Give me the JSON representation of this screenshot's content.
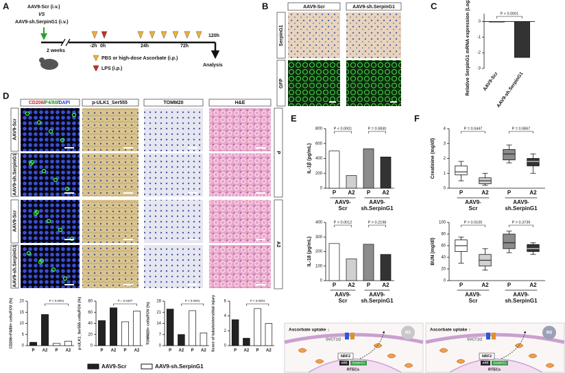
{
  "panel_a": {
    "letter": "A",
    "group1": "AAV9-Scr (i.v.)",
    "vs": "VS",
    "group2": "AAV9-sh.SerpinG1 (i.v.)",
    "interval": "2 weeks",
    "times": [
      "-2h",
      "0h",
      "24h",
      "72h",
      "120h"
    ],
    "endpoint": "Analysis",
    "legend": [
      "PBS or high-dose Ascorbate (i.p.)",
      "LPS (i.p.)"
    ]
  },
  "panel_b": {
    "letter": "B",
    "columns": [
      "AAV9-Scr",
      "AAV9-sh.SerpinG1"
    ],
    "rows": [
      "SerpinG1",
      "GFP"
    ]
  },
  "panel_c": {
    "letter": "C"
  },
  "panel_d": {
    "letter": "D",
    "columns": [
      "CD206",
      "/",
      "F4/80",
      "/",
      "DAPI",
      "p-ULK1_Ser555",
      "TOMM20",
      "H&E"
    ],
    "rows": [
      "AAV9-Scr",
      "AAV9-sh.SerpinG1",
      "AAV9-Scr",
      "AAV9-sh.SerpinG1"
    ],
    "groups": [
      "P",
      "A2"
    ],
    "legend": [
      "AAV9-Scr",
      "AAV9-sh.SerpinG1"
    ]
  },
  "panel_e": {
    "letter": "E"
  },
  "panel_f": {
    "letter": "F"
  },
  "panel_g": {
    "letter": "G",
    "left": {
      "uptake": "Ascorbate uptake ↓",
      "transporter": "SVCT1/2",
      "macrophage": "M2",
      "factor": "NRF2",
      "element": "ARE",
      "gene": "SerpinG1",
      "cell": "RTECs"
    },
    "right": {
      "uptake": "Ascorbate uptake ↑",
      "transporter": "SVCT1/2",
      "macrophage": "M2",
      "factor": "NRF2",
      "element": "ARE",
      "gene": "SerpinG1",
      "cell": "RTECs"
    }
  },
  "chart_data": [
    {
      "type": "bar",
      "ylabel": "Relative SerpinG1 mRNA expression (Log2 fold)",
      "categories": [
        "AAV9-Scr",
        "AAV9-sh.SerpinG1"
      ],
      "values": [
        0,
        -2.3
      ],
      "colors": [
        "#d9d9d9",
        "#333333"
      ],
      "ylim": [
        -3,
        0.5
      ],
      "yticks": [
        0,
        -1,
        -2,
        -3
      ],
      "annotations": [
        "P < 0.0001"
      ]
    },
    {
      "type": "bar",
      "ylabel": "CD206+F4/80+ cells/FOV (%)",
      "categories": [
        "P",
        "A2",
        "P",
        "A2"
      ],
      "values": [
        1.5,
        14,
        1,
        2
      ],
      "colors": [
        "#222222",
        "#222222",
        "#ffffff",
        "#ffffff"
      ],
      "ylim": [
        0,
        20
      ],
      "yticks": [
        0,
        5,
        10,
        15,
        20
      ],
      "annotations": [
        "P < 0.0001"
      ]
    },
    {
      "type": "bar",
      "ylabel": "p-ULK1_Ser555 cells/FOV (%)",
      "categories": [
        "P",
        "A2",
        "P",
        "A2"
      ],
      "values": [
        45,
        68,
        43,
        62
      ],
      "colors": [
        "#222222",
        "#222222",
        "#ffffff",
        "#ffffff"
      ],
      "ylim": [
        0,
        80
      ],
      "yticks": [
        0,
        20,
        40,
        60,
        80
      ],
      "annotations": [
        "P = 0.0407"
      ]
    },
    {
      "type": "bar",
      "ylabel": "TOMM20+ cells/FOV (%)",
      "categories": [
        "P",
        "A2",
        "P",
        "A2"
      ],
      "values": [
        23,
        7,
        22,
        8
      ],
      "colors": [
        "#222222",
        "#222222",
        "#ffffff",
        "#ffffff"
      ],
      "ylim": [
        0,
        28
      ],
      "yticks": [
        0,
        7,
        14,
        21,
        28
      ],
      "annotations": [
        "P < 0.0001"
      ]
    },
    {
      "type": "bar",
      "ylabel": "Score of tubulointerstitial injury",
      "categories": [
        "P",
        "A2",
        "P",
        "A2"
      ],
      "values": [
        3.5,
        1,
        5,
        3
      ],
      "colors": [
        "#222222",
        "#222222",
        "#ffffff",
        "#ffffff"
      ],
      "ylim": [
        0,
        6
      ],
      "yticks": [
        0,
        2,
        4,
        6
      ],
      "annotations": [
        "P < 0.0001"
      ]
    },
    {
      "type": "bar",
      "ylabel": "IL-1β (pg/mL)",
      "categories": [
        "P",
        "A2",
        "P",
        "A2"
      ],
      "groups": [
        [
          "AAV9-",
          "Scr"
        ],
        [
          "AAV9-",
          "sh.SerpinG1"
        ]
      ],
      "values": [
        500,
        170,
        530,
        420
      ],
      "colors": [
        "#ffffff",
        "#d0d0d0",
        "#8c8c8c",
        "#333333"
      ],
      "ylim": [
        0,
        800
      ],
      "yticks": [
        0,
        200,
        400,
        600,
        800
      ],
      "annotations": [
        "P < 0.0001",
        "P = 0.0830"
      ]
    },
    {
      "type": "bar",
      "ylabel": "IL-18 (pg/mL)",
      "categories": [
        "P",
        "A2",
        "P",
        "A2"
      ],
      "groups": [
        [
          "AAV9-",
          "Scr"
        ],
        [
          "AAV9-",
          "sh.SerpinG1"
        ]
      ],
      "values": [
        255,
        150,
        250,
        180
      ],
      "colors": [
        "#ffffff",
        "#d0d0d0",
        "#8c8c8c",
        "#333333"
      ],
      "ylim": [
        0,
        400
      ],
      "yticks": [
        0,
        100,
        200,
        300,
        400
      ],
      "annotations": [
        "P = 0.0012",
        "P = 0.2198"
      ]
    },
    {
      "type": "box",
      "ylabel": "Creatinine (mg/dl)",
      "categories": [
        "P",
        "A2",
        "P",
        "A2"
      ],
      "groups": [
        [
          "AAV9-",
          "Scr"
        ],
        [
          "AAV9-",
          "sh.SerpinG1"
        ]
      ],
      "boxes": [
        {
          "min": 0.5,
          "q1": 0.9,
          "median": 1.1,
          "q3": 1.5,
          "max": 1.8
        },
        {
          "min": 0.2,
          "q1": 0.3,
          "median": 0.5,
          "q3": 0.7,
          "max": 1.0
        },
        {
          "min": 1.7,
          "q1": 1.9,
          "median": 2.3,
          "q3": 2.6,
          "max": 2.9
        },
        {
          "min": 1.0,
          "q1": 1.5,
          "median": 1.8,
          "q3": 2.0,
          "max": 2.3
        }
      ],
      "colors": [
        "#ffffff",
        "#d0d0d0",
        "#8c8c8c",
        "#333333"
      ],
      "ylim": [
        0,
        4
      ],
      "yticks": [
        0,
        1,
        2,
        3,
        4
      ],
      "annotations": [
        "P = 0.0447",
        "P = 0.0867"
      ]
    },
    {
      "type": "box",
      "ylabel": "BUN (mg/dl)",
      "categories": [
        "P",
        "A2",
        "P",
        "A2"
      ],
      "groups": [
        [
          "AAV9-",
          "Scr"
        ],
        [
          "AAV9-",
          "sh.SerpinG1"
        ]
      ],
      "boxes": [
        {
          "min": 30,
          "q1": 50,
          "median": 60,
          "q3": 70,
          "max": 75
        },
        {
          "min": 18,
          "q1": 25,
          "median": 35,
          "q3": 45,
          "max": 55
        },
        {
          "min": 48,
          "q1": 55,
          "median": 65,
          "q3": 80,
          "max": 85
        },
        {
          "min": 45,
          "q1": 50,
          "median": 55,
          "q3": 62,
          "max": 65
        }
      ],
      "colors": [
        "#ffffff",
        "#d0d0d0",
        "#8c8c8c",
        "#333333"
      ],
      "ylim": [
        0,
        100
      ],
      "yticks": [
        0,
        20,
        40,
        60,
        80,
        100
      ],
      "annotations": [
        "P = 0.0100",
        "P = 0.3739"
      ]
    }
  ]
}
